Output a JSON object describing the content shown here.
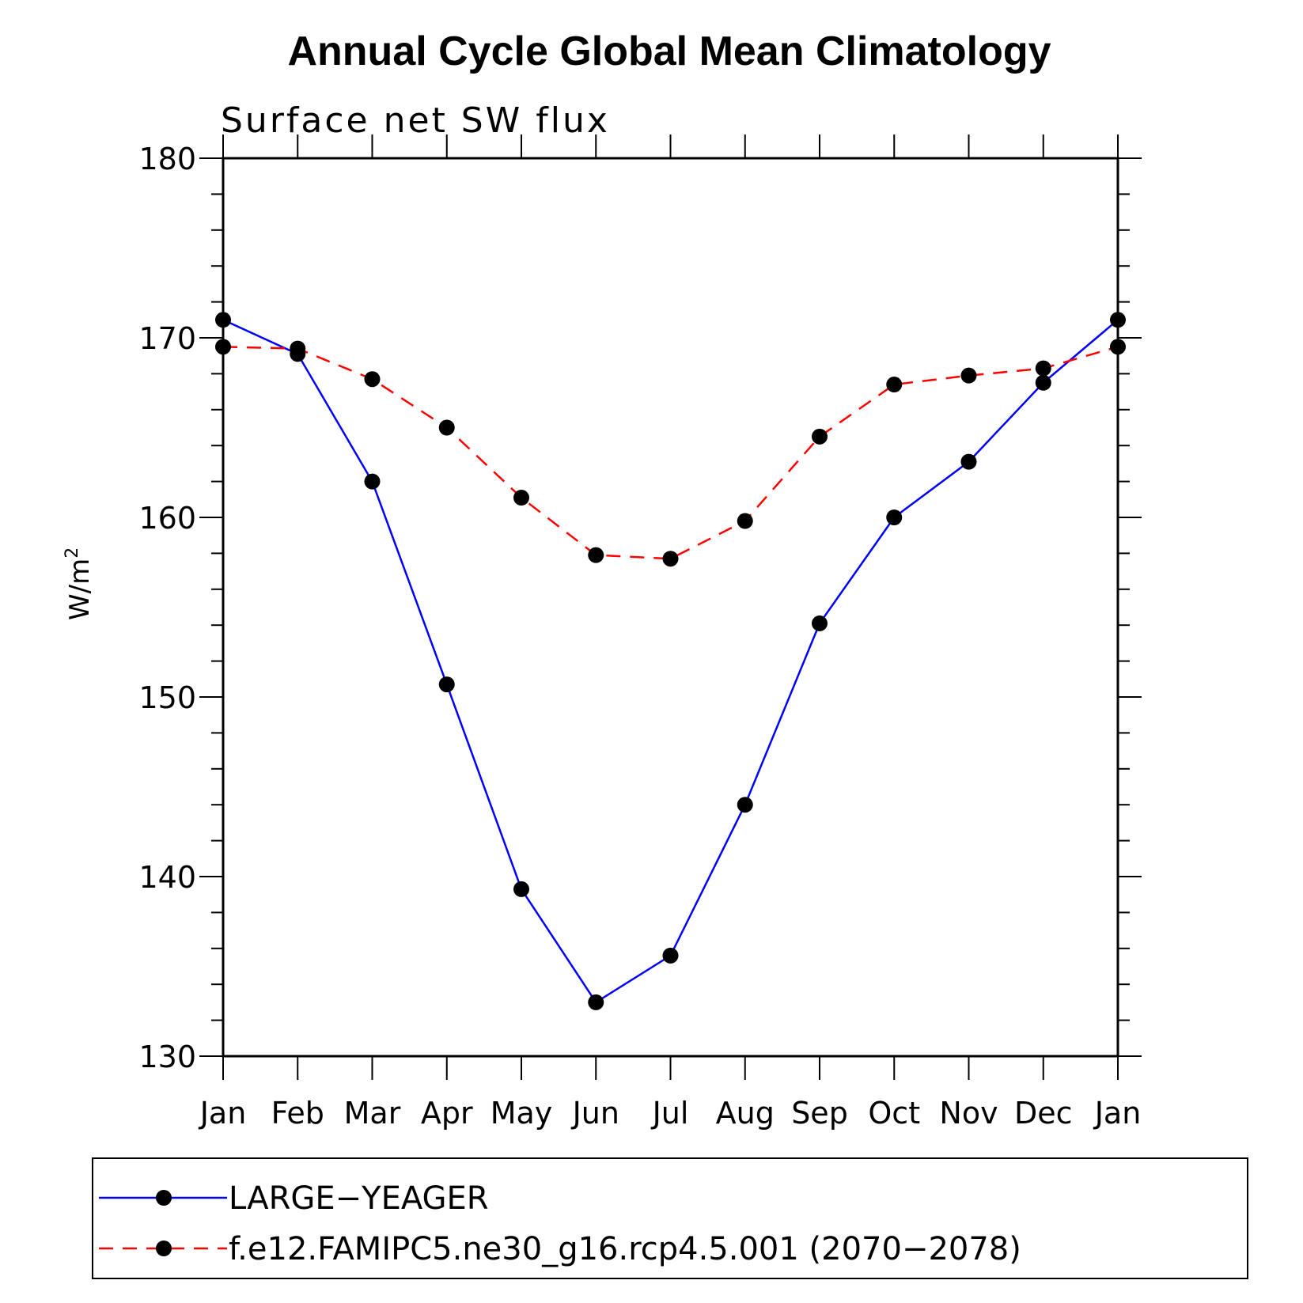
{
  "chart_data": {
    "type": "line",
    "title": "Annual Cycle Global Mean Climatology",
    "subtitle": "Surface net SW flux",
    "ylabel": "W/m",
    "ylabel_superscript": "2",
    "xlabel": "",
    "categories": [
      "Jan",
      "Feb",
      "Mar",
      "Apr",
      "May",
      "Jun",
      "Jul",
      "Aug",
      "Sep",
      "Oct",
      "Nov",
      "Dec",
      "Jan"
    ],
    "ylim": [
      130,
      180
    ],
    "yticks": [
      130,
      140,
      150,
      160,
      170,
      180
    ],
    "grid": false,
    "legend_position": "bottom",
    "series": [
      {
        "name": "LARGE−YEAGER",
        "color": "#0000ff",
        "line_style": "solid",
        "marker": "filled-circle",
        "values": [
          171.0,
          169.1,
          162.0,
          150.7,
          139.3,
          133.0,
          135.6,
          144.0,
          154.1,
          160.0,
          163.1,
          167.5,
          171.0
        ]
      },
      {
        "name": "f.e12.FAMIPC5.ne30_g16.rcp4.5.001 (2070−2078)",
        "color": "#ff0000",
        "line_style": "dashed",
        "marker": "filled-circle",
        "values": [
          169.5,
          169.4,
          167.7,
          165.0,
          161.1,
          157.9,
          157.7,
          159.8,
          164.5,
          167.4,
          167.9,
          168.3,
          169.5
        ]
      }
    ]
  }
}
